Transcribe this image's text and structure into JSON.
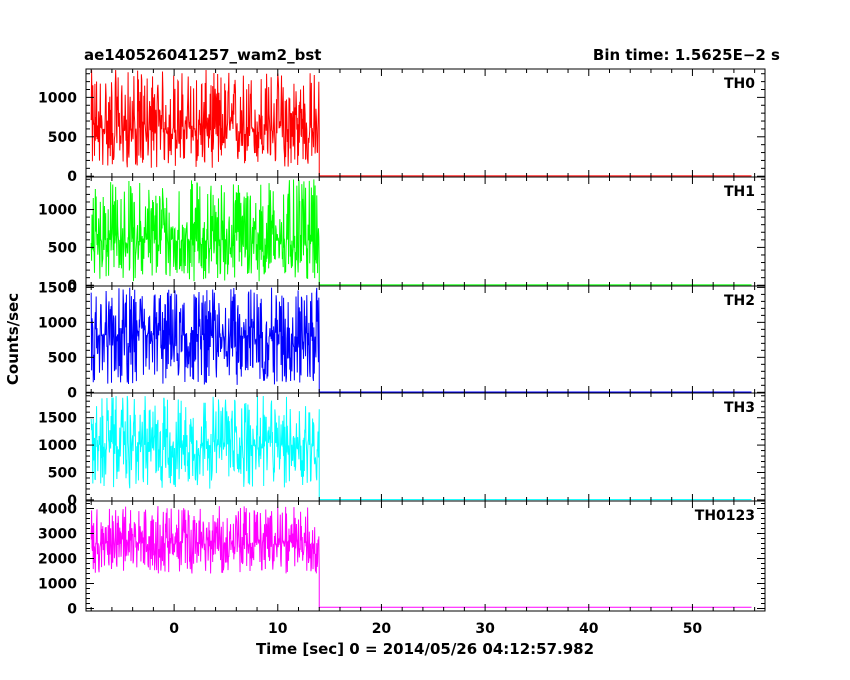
{
  "chart_data": {
    "type": "line",
    "title_left": "ae140526041257_wam2_bst",
    "title_right": "Bin time: 1.5625E−2 s",
    "xlabel": "Time [sec] 0 = 2014/05/26 04:12:57.982",
    "ylabel": "Counts/sec",
    "xlim": [
      -8.5,
      57
    ],
    "x_ticks": [
      0,
      10,
      20,
      30,
      40,
      50
    ],
    "x_tick_labels": [
      "0",
      "10",
      "20",
      "30",
      "40",
      "50"
    ],
    "burst_window": [
      -8,
      14
    ],
    "panels": [
      {
        "label": "TH0",
        "color": "#ff0000",
        "ylim": [
          -10,
          1360
        ],
        "y_ticks": [
          0,
          500,
          1000
        ],
        "y_tick_labels": [
          "0",
          "500",
          "1000"
        ],
        "on_level_range": [
          100,
          1350
        ],
        "on_mean": 600,
        "off_level": 5
      },
      {
        "label": "TH1",
        "color": "#00ff00",
        "ylim": [
          -10,
          1430
        ],
        "y_ticks": [
          0,
          500,
          1000
        ],
        "y_tick_labels": [
          "0",
          "500",
          "1000"
        ],
        "on_level_range": [
          50,
          1400
        ],
        "on_mean": 600,
        "off_level": 5
      },
      {
        "label": "TH2",
        "color": "#0000ff",
        "ylim": [
          -10,
          1520
        ],
        "y_ticks": [
          0,
          500,
          1000,
          1500
        ],
        "y_tick_labels": [
          "0",
          "500",
          "1000",
          "1500"
        ],
        "on_level_range": [
          100,
          1500
        ],
        "on_mean": 800,
        "off_level": 5
      },
      {
        "label": "TH3",
        "color": "#00ffff",
        "ylim": [
          -20,
          1950
        ],
        "y_ticks": [
          0,
          500,
          1000,
          1500
        ],
        "y_tick_labels": [
          "0",
          "500",
          "1000",
          "1500"
        ],
        "on_level_range": [
          200,
          1900
        ],
        "on_mean": 1000,
        "off_level": 5
      },
      {
        "label": "TH0123",
        "color": "#ff00ff",
        "ylim": [
          -100,
          4300
        ],
        "y_ticks": [
          0,
          1000,
          2000,
          3000,
          4000
        ],
        "y_tick_labels": [
          "0",
          "1000",
          "2000",
          "3000",
          "4000"
        ],
        "on_level_range": [
          1400,
          4100
        ],
        "on_mean": 2600,
        "off_level": 50
      }
    ]
  }
}
